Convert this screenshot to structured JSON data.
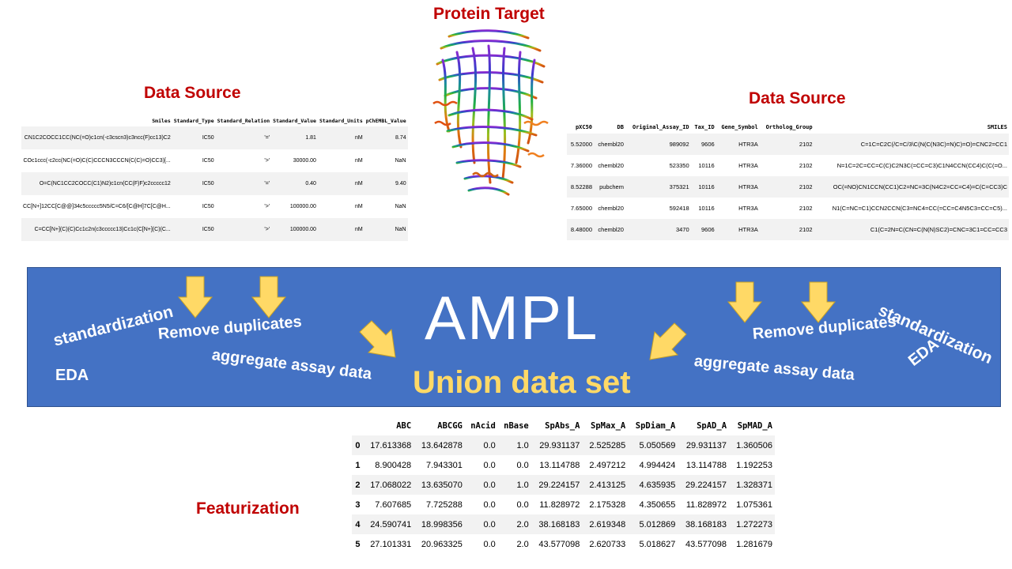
{
  "titles": {
    "protein": "Protein Target",
    "source_left": "Data Source",
    "source_right": "Data Source",
    "featurization": "Featurization"
  },
  "ampl": {
    "title": "AMPL",
    "union": "Union data set",
    "left_words": {
      "standardization": "standardization",
      "remove_duplicates": "Remove duplicates",
      "aggregate": "aggregate assay data",
      "eda": "EDA"
    },
    "right_words": {
      "standardization": "standardization",
      "remove_duplicates": "Remove duplicates",
      "aggregate": "aggregate assay data",
      "eda": "EDA"
    },
    "box_color": "#4472c4",
    "arrow_color": "#ffd966"
  },
  "left_table": {
    "headers": [
      "Smiles",
      "Standard_Type",
      "Standard_Relation",
      "Standard_Value",
      "Standard_Units",
      "pChEMBL_Value"
    ],
    "rows": [
      [
        "CN1C2COCC1CC(NC(=O)c1cn(-c3cscn3)c3ncc(F)cc13)C2",
        "IC50",
        "'='",
        "1.81",
        "nM",
        "8.74"
      ],
      [
        "COc1ccc(-c2cc(NC(=O)C(C)CCCN3CCCN(C(C)=O)CC3)[...",
        "IC50",
        "'>'",
        "30000.00",
        "nM",
        "NaN"
      ],
      [
        "O=C(NC1CC2COCC(C1)N2)c1cn(CC(F)F)c2ccccc12",
        "IC50",
        "'='",
        "0.40",
        "nM",
        "9.40"
      ],
      [
        "CC[N+]12CC[C@@]34c5ccccc5N5/C=C6/[C@H]7C[C@H...",
        "IC50",
        "'>'",
        "100000.00",
        "nM",
        "NaN"
      ],
      [
        "C=CC[N+](C)(C)Cc1c2n(c3ccccc13)Cc1c(C[N+](C)(C...",
        "IC50",
        "'>'",
        "100000.00",
        "nM",
        "NaN"
      ]
    ]
  },
  "right_table": {
    "headers": [
      "pXC50",
      "DB",
      "Original_Assay_ID",
      "Tax_ID",
      "Gene_Symbol",
      "Ortholog_Group",
      "SMILES"
    ],
    "rows": [
      [
        "5.52000",
        "chembl20",
        "989092",
        "9606",
        "HTR3A",
        "2102",
        "C=1C=C2C(/C=C/3\\C(N(C(N3C)=N)C)=O)=CNC2=CC1"
      ],
      [
        "7.36000",
        "chembl20",
        "523350",
        "10116",
        "HTR3A",
        "2102",
        "N=1C=2C=CC=C(C)C2N3C(=CC=C3)C1N4CCN(CC4)C(C(=O..."
      ],
      [
        "8.52288",
        "pubchem",
        "375321",
        "10116",
        "HTR3A",
        "2102",
        "OC(=NO)CN1CCN(CC1)C2=NC=3C(N4C2=CC=C4)=C(C=CC3)C"
      ],
      [
        "7.65000",
        "chembl20",
        "592418",
        "10116",
        "HTR3A",
        "2102",
        "N1(C=NC=C1)CCN2CCN(C3=NC4=CC(=CC=C4N5C3=CC=C5)..."
      ],
      [
        "8.48000",
        "chembl20",
        "3470",
        "9606",
        "HTR3A",
        "2102",
        "C1(C=2N=C(CN=C(N(N)SC2)=CNC=3C1=CC=CC3"
      ]
    ]
  },
  "feat_table": {
    "headers": [
      "",
      "ABC",
      "ABCGG",
      "nAcid",
      "nBase",
      "SpAbs_A",
      "SpMax_A",
      "SpDiam_A",
      "SpAD_A",
      "SpMAD_A"
    ],
    "rows": [
      [
        "0",
        "17.613368",
        "13.642878",
        "0.0",
        "1.0",
        "29.931137",
        "2.525285",
        "5.050569",
        "29.931137",
        "1.360506"
      ],
      [
        "1",
        "8.900428",
        "7.943301",
        "0.0",
        "0.0",
        "13.114788",
        "2.497212",
        "4.994424",
        "13.114788",
        "1.192253"
      ],
      [
        "2",
        "17.068022",
        "13.635070",
        "0.0",
        "1.0",
        "29.224157",
        "2.413125",
        "4.635935",
        "29.224157",
        "1.328371"
      ],
      [
        "3",
        "7.607685",
        "7.725288",
        "0.0",
        "0.0",
        "11.828972",
        "2.175328",
        "4.350655",
        "11.828972",
        "1.075361"
      ],
      [
        "4",
        "24.590741",
        "18.998356",
        "0.0",
        "2.0",
        "38.168183",
        "2.619348",
        "5.012869",
        "38.168183",
        "1.272273"
      ],
      [
        "5",
        "27.101331",
        "20.963325",
        "0.0",
        "2.0",
        "43.577098",
        "2.620733",
        "5.018627",
        "43.577098",
        "1.281679"
      ]
    ]
  }
}
